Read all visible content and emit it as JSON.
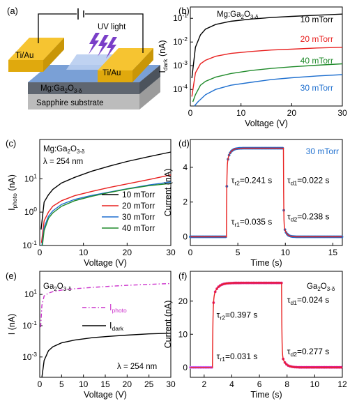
{
  "panels": {
    "a": {
      "label": "(a)",
      "uv_light": "UV light",
      "electrode_left": "Ti/Au",
      "electrode_right": "Ti/Au",
      "film_main": "Mg:Ga",
      "film_sub": "2",
      "film_main2": "O",
      "film_sub2": "3-δ",
      "substrate": "Sapphire substrate"
    },
    "b": {
      "label": "(b)",
      "material_main": "Mg:Ga",
      "material_sub": "2",
      "material_main2": "O",
      "material_sub2": "3-δ"
    },
    "c": {
      "label": "(c)",
      "material_main": "Mg:Ga",
      "material_sub": "2",
      "material_main2": "O",
      "material_sub2": "3-δ",
      "wavelength": "λ = 254 nm"
    },
    "d": {
      "label": "(d)"
    },
    "e": {
      "label": "(e)",
      "material_main": "Ga",
      "material_sub": "2",
      "material_main2": "O",
      "material_sub2": "3-δ",
      "wavelength": "λ = 254 nm"
    },
    "f": {
      "label": "(f)",
      "material_main": "Ga",
      "material_sub": "2",
      "material_main2": "O",
      "material_sub2": "3-δ"
    }
  },
  "chart_data": [
    {
      "panel": "b",
      "type": "line",
      "xlabel": "Voltage (V)",
      "ylabel": "I",
      "ylabel_sub": "dark",
      "ylabel_unit": " (nA)",
      "yscale": "log",
      "xlim": [
        0,
        30
      ],
      "ylim": [
        2e-05,
        0.3
      ],
      "xticks": [
        0,
        10,
        20,
        30
      ],
      "yticks": [
        0.0001,
        0.001,
        0.01,
        0.1
      ],
      "ytick_labels": [
        [
          "10",
          "-4"
        ],
        [
          "10",
          "-3"
        ],
        [
          "10",
          "-2"
        ],
        [
          "10",
          "-1"
        ]
      ],
      "legend_placement": "inline-right",
      "series": [
        {
          "name": "10 mTorr",
          "color": "#000000",
          "x": [
            0.3,
            1,
            2,
            3,
            5,
            8,
            12,
            16,
            20,
            25,
            30
          ],
          "values": [
            0.0003,
            0.006,
            0.02,
            0.035,
            0.055,
            0.075,
            0.093,
            0.108,
            0.12,
            0.135,
            0.15
          ]
        },
        {
          "name": "20 mTorr",
          "color": "#e8201f",
          "x": [
            0.3,
            1,
            2,
            3,
            5,
            8,
            12,
            16,
            20,
            25,
            30
          ],
          "values": [
            5e-05,
            0.0005,
            0.0012,
            0.0017,
            0.0025,
            0.0033,
            0.004,
            0.0046,
            0.005,
            0.0056,
            0.006
          ]
        },
        {
          "name": "40 mTorr",
          "color": "#1f8a2a",
          "x": [
            0.5,
            1,
            2,
            3,
            5,
            8,
            12,
            16,
            20,
            25,
            30
          ],
          "values": [
            3e-05,
            6e-05,
            0.00015,
            0.00022,
            0.00033,
            0.00047,
            0.00063,
            0.00077,
            0.0009,
            0.00105,
            0.0012
          ]
        },
        {
          "name": "30 mTorr",
          "color": "#1e6fcf",
          "x": [
            0.8,
            1.5,
            3,
            5,
            8,
            12,
            16,
            20,
            25,
            30
          ],
          "values": [
            2e-05,
            3e-05,
            6e-05,
            0.0001,
            0.00015,
            0.0002,
            0.00026,
            0.00031,
            0.00037,
            0.00042
          ]
        }
      ]
    },
    {
      "panel": "c",
      "type": "line",
      "xlabel": "Voltage (V)",
      "ylabel": "I",
      "ylabel_sub": "photo",
      "ylabel_unit": " (nA)",
      "yscale": "log",
      "xlim": [
        0,
        30
      ],
      "ylim": [
        0.1,
        150
      ],
      "xticks": [
        0,
        10,
        20,
        30
      ],
      "yticks": [
        0.1,
        1,
        10
      ],
      "ytick_labels": [
        [
          "10",
          "-1"
        ],
        [
          "10",
          "0"
        ],
        [
          "10",
          "1"
        ]
      ],
      "legend_placement": "lower-right",
      "series": [
        {
          "name": "10 mTorr",
          "color": "#000000",
          "x": [
            0.3,
            1,
            2,
            3,
            5,
            8,
            12,
            16,
            20,
            25,
            30
          ],
          "values": [
            0.3,
            2.0,
            3.3,
            4.8,
            7.5,
            11,
            17,
            24,
            33,
            46,
            63
          ]
        },
        {
          "name": "20 mTorr",
          "color": "#e8201f",
          "x": [
            0.4,
            1,
            2,
            3,
            5,
            8,
            12,
            16,
            20,
            25,
            30
          ],
          "values": [
            0.12,
            0.55,
            1.0,
            1.5,
            2.2,
            3.1,
            4.2,
            5.5,
            7.0,
            9.5,
            13
          ]
        },
        {
          "name": "30 mTorr",
          "color": "#1e6fcf",
          "x": [
            0.5,
            1,
            2,
            3,
            5,
            8,
            12,
            16,
            20,
            25,
            30
          ],
          "values": [
            0.1,
            0.35,
            0.75,
            1.1,
            1.7,
            2.4,
            3.2,
            4.0,
            5.0,
            6.5,
            8.0
          ]
        },
        {
          "name": "40 mTorr",
          "color": "#1f8a2a",
          "x": [
            0.6,
            1,
            2,
            3,
            5,
            8,
            12,
            16,
            20,
            25,
            30
          ],
          "values": [
            0.1,
            0.28,
            0.65,
            0.95,
            1.5,
            2.2,
            3.0,
            3.9,
            4.9,
            6.2,
            7.2
          ]
        }
      ]
    },
    {
      "panel": "d",
      "type": "line",
      "xlabel": "Time (s)",
      "ylabel": "Current (nA)",
      "xlim": [
        0,
        16
      ],
      "ylim": [
        -0.5,
        5.6
      ],
      "xticks": [
        0,
        5,
        10,
        15
      ],
      "yticks": [
        0,
        2,
        4
      ],
      "legend_placement": "top-right",
      "series_label": "30 mTorr",
      "series_label_color": "#1e6fcf",
      "fit_color": "#e8201f",
      "marker_color": "#1e6fcf",
      "annotations": [
        {
          "sym": "τ",
          "sub": "r2",
          "text": "=0.241 s",
          "at": [
            4.3,
            3.1
          ]
        },
        {
          "sym": "τ",
          "sub": "d1",
          "text": "=0.022 s",
          "at": [
            10.2,
            3.1
          ]
        },
        {
          "sym": "τ",
          "sub": "r1",
          "text": "=0.035 s",
          "at": [
            4.3,
            0.7
          ]
        },
        {
          "sym": "τ",
          "sub": "d2",
          "text": "=0.238 s",
          "at": [
            10.2,
            1.0
          ]
        }
      ],
      "on_time": 3.8,
      "off_time": 9.8,
      "high": 5.1
    },
    {
      "panel": "e",
      "type": "line",
      "xlabel": "Voltage (V)",
      "ylabel": "I (nA)",
      "yscale": "log",
      "xlim": [
        0,
        30
      ],
      "ylim": [
        5e-05,
        300
      ],
      "xticks": [
        0,
        5,
        10,
        15,
        20,
        25,
        30
      ],
      "yticks": [
        0.001,
        0.1,
        10
      ],
      "ytick_labels": [
        [
          "10",
          "-3"
        ],
        [
          "10",
          "-1"
        ],
        [
          "10",
          "1"
        ]
      ],
      "legend_placement": "right",
      "series": [
        {
          "name": "I",
          "name_sub": "photo",
          "color": "#cc33cc",
          "dash": "6,3,1.5,3",
          "x": [
            0.2,
            0.5,
            1,
            2,
            3,
            5,
            8,
            12,
            16,
            20,
            25,
            30
          ],
          "values": [
            0.08,
            2,
            8,
            12,
            15,
            19,
            23,
            28,
            33,
            38,
            44,
            50
          ]
        },
        {
          "name": "I",
          "name_sub": "dark",
          "color": "#000000",
          "x": [
            0.5,
            1,
            2,
            3,
            5,
            8,
            12,
            16,
            20,
            25,
            30
          ],
          "values": [
            5e-05,
            0.0006,
            0.0025,
            0.0045,
            0.008,
            0.012,
            0.017,
            0.021,
            0.025,
            0.03,
            0.033
          ]
        }
      ]
    },
    {
      "panel": "f",
      "type": "line",
      "xlabel": "Time (s)",
      "ylabel": "Current (nA)",
      "xlim": [
        1,
        12
      ],
      "ylim": [
        -3,
        29
      ],
      "xticks": [
        2,
        4,
        6,
        8,
        10,
        12
      ],
      "yticks": [
        0,
        10,
        20
      ],
      "fit_color": "#e8201f",
      "marker_color": "#e0208a",
      "baseline_color": "#cc66ee",
      "annotations": [
        {
          "sym": "τ",
          "sub": "r2",
          "text": "=0.397 s",
          "at": [
            2.9,
            15
          ]
        },
        {
          "sym": "τ",
          "sub": "d1",
          "text": "=0.024 s",
          "at": [
            8.0,
            19.5
          ]
        },
        {
          "sym": "τ",
          "sub": "r1",
          "text": "=0.031 s",
          "at": [
            2.9,
            2.5
          ]
        },
        {
          "sym": "τ",
          "sub": "d2",
          "text": "=0.277 s",
          "at": [
            8.0,
            4
          ]
        }
      ],
      "on_time": 2.6,
      "off_time": 7.6,
      "high": 25.5
    }
  ]
}
